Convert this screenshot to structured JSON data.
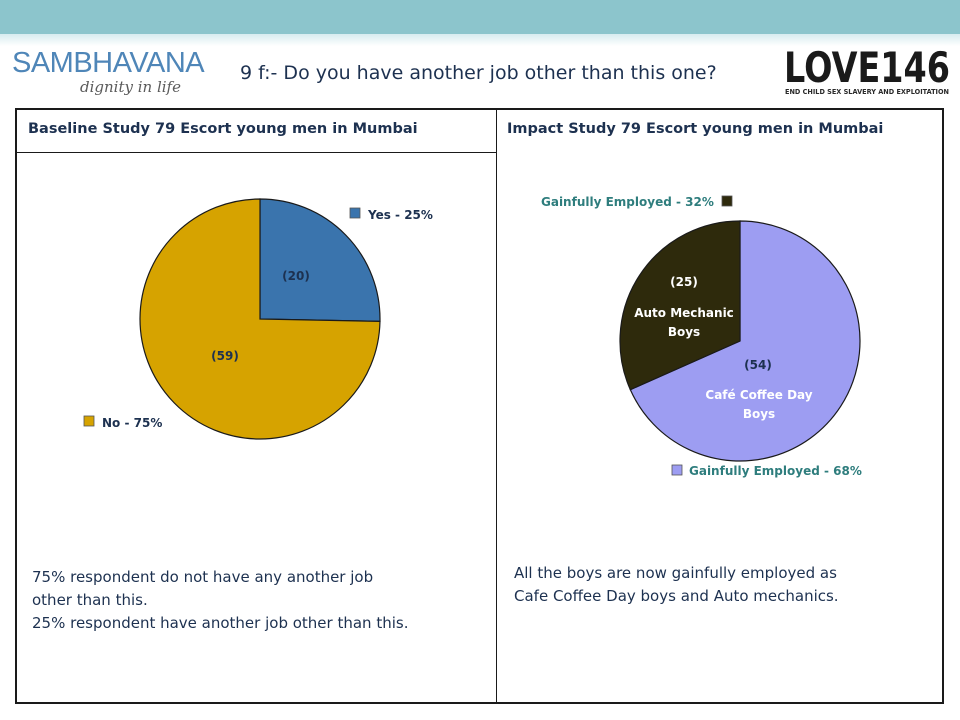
{
  "header": {
    "title": "9 f:- Do you have another job other than this one?",
    "band_color": "#8cc5cc"
  },
  "logos": {
    "left_brand": "SAMBHAVANA",
    "left_tagline": "dignity in life",
    "right_brand": "LOVE146",
    "right_tagline": "END CHILD SEX SLAVERY AND EXPLOITATION"
  },
  "columns": {
    "baseline_title": "Baseline Study 79 Escort young men in Mumbai",
    "impact_title": "Impact Study 79 Escort young men in Mumbai"
  },
  "summary": {
    "baseline": [
      "75% respondent do not have any another job",
      "other than this.",
      "25% respondent have another job other than this."
    ],
    "impact": [
      "All the boys are now gainfully employed as",
      "Cafe Coffee Day boys and Auto mechanics."
    ]
  },
  "chart_data": [
    {
      "type": "pie",
      "title": "Baseline Study 79 Escort young men in Mumbai",
      "total": 79,
      "start_angle_deg": 0,
      "slices": [
        {
          "name": "Yes",
          "value": 20,
          "count_label": "(20)",
          "legend": "Yes - 25%",
          "color": "#3a74ad",
          "sub_label": ""
        },
        {
          "name": "No",
          "value": 59,
          "count_label": "(59)",
          "legend": "No - 75%",
          "color": "#d6a300",
          "sub_label": ""
        }
      ]
    },
    {
      "type": "pie",
      "title": "Impact Study 79 Escort young men in Mumbai",
      "total": 79,
      "start_angle_deg": 0,
      "slices": [
        {
          "name": "Café Coffee Day Boys",
          "value": 54,
          "count_label": "(54)",
          "legend": "Gainfully Employed - 68%",
          "color": "#9d9df2",
          "sub_label": "Café Coffee Day Boys"
        },
        {
          "name": "Auto Mechanic Boys",
          "value": 25,
          "count_label": "(25)",
          "legend": "Gainfully Employed - 32%",
          "color": "#2e2a0c",
          "sub_label": "Auto Mechanic Boys"
        }
      ]
    }
  ]
}
